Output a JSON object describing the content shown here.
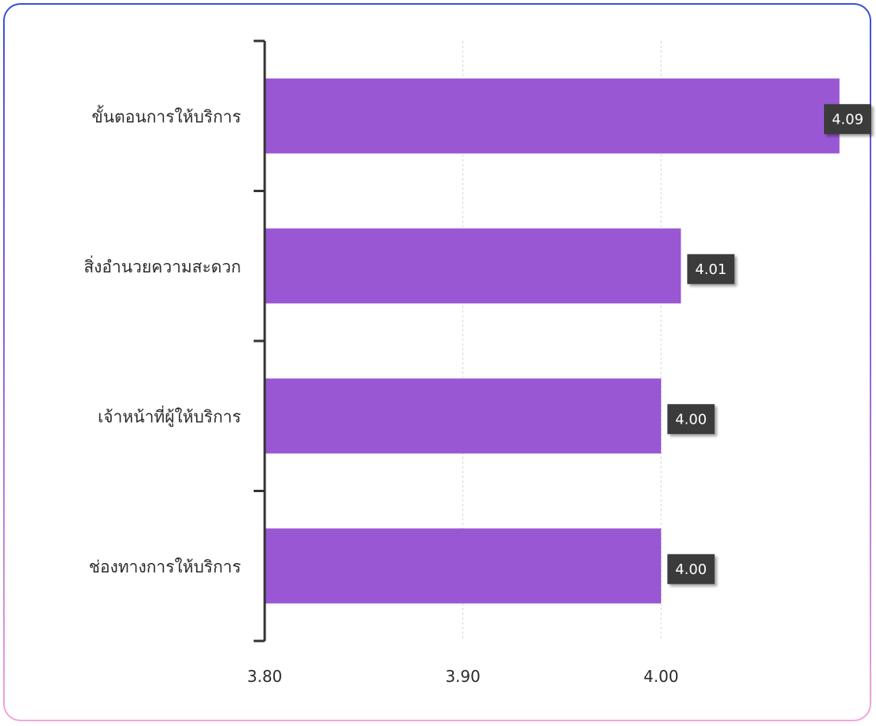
{
  "chart_data": {
    "type": "bar",
    "orientation": "horizontal",
    "title": "",
    "xlabel": "",
    "ylabel": "",
    "categories": [
      "ขั้นตอนการให้บริการ",
      "สิ่งอำนวยความสะดวก",
      "เจ้าหน้าที่ผู้ให้บริการ",
      "ช่องทางการให้บริการ"
    ],
    "values": [
      4.09,
      4.01,
      4.0,
      4.0
    ],
    "value_labels": [
      "4.09",
      "4.01",
      "4.00",
      "4.00"
    ],
    "xlim": [
      3.8,
      4.0
    ],
    "x_ticks": [
      3.8,
      3.9,
      4.0
    ],
    "x_tick_labels": [
      "3.80",
      "3.90",
      "4.00"
    ],
    "grid": "vertical-dashed",
    "legend": "none",
    "colors": {
      "bar": "#9957d4",
      "label_box": "#3a3a3a",
      "label_text": "#ffffff",
      "axis": "#333333",
      "grid": "#d4d4d4",
      "text": "#2b2b2b"
    }
  }
}
